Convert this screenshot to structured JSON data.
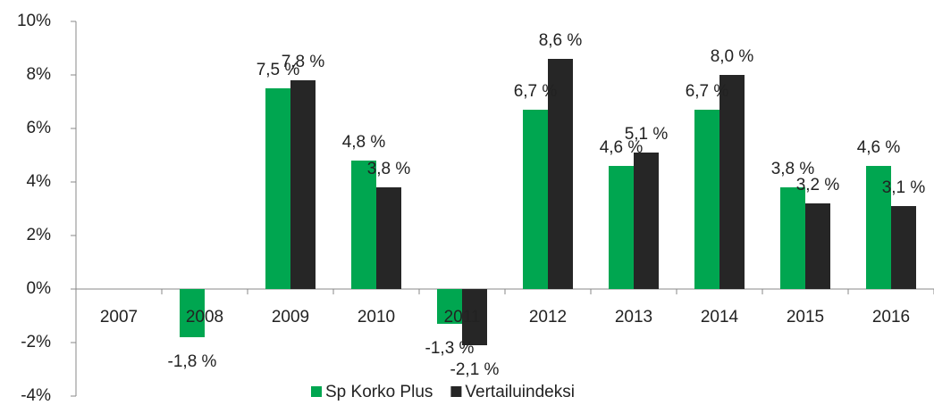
{
  "chart_data": {
    "type": "bar",
    "categories": [
      "2007",
      "2008",
      "2009",
      "2010",
      "2011",
      "2012",
      "2013",
      "2014",
      "2015",
      "2016"
    ],
    "series": [
      {
        "name": "Sp Korko Plus",
        "color": "#00a650",
        "values": [
          null,
          -1.8,
          7.5,
          4.8,
          -1.3,
          6.7,
          4.6,
          6.7,
          3.8,
          4.6
        ],
        "value_labels": [
          null,
          "-1,8 %",
          "7,5 %",
          "4,8 %",
          "-1,3 %",
          "6,7 %",
          "4,6 %",
          "6,7 %",
          "3,8 %",
          "4,6 %"
        ]
      },
      {
        "name": "Vertailuindeksi",
        "color": "#262626",
        "values": [
          null,
          null,
          7.8,
          3.8,
          -2.1,
          8.6,
          5.1,
          8.0,
          3.2,
          3.1
        ],
        "value_labels": [
          null,
          null,
          "7,8 %",
          "3,8 %",
          "-2,1 %",
          "8,6 %",
          "5,1 %",
          "8,0 %",
          "3,2 %",
          "3,1 %"
        ]
      }
    ],
    "ylim": [
      -4,
      10
    ],
    "yticks": [
      {
        "value": -4,
        "label": "-4%"
      },
      {
        "value": -2,
        "label": "-2%"
      },
      {
        "value": 0,
        "label": "0%"
      },
      {
        "value": 2,
        "label": "2%"
      },
      {
        "value": 4,
        "label": "4%"
      },
      {
        "value": 6,
        "label": "6%"
      },
      {
        "value": 8,
        "label": "8%"
      },
      {
        "value": 10,
        "label": "10%"
      }
    ],
    "legend": "bottom"
  }
}
